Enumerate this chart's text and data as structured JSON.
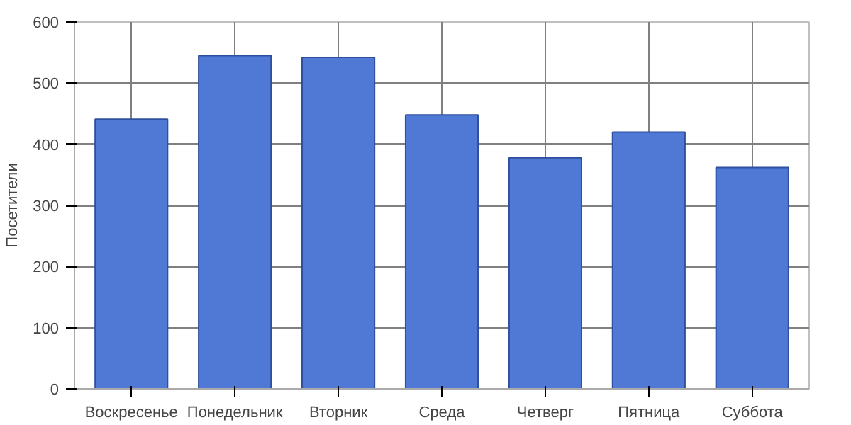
{
  "chart_data": {
    "type": "bar",
    "ylabel": "Посетители",
    "categories": [
      "Воскресенье",
      "Понедельник",
      "Вторник",
      "Среда",
      "Четверг",
      "Пятница",
      "Суббота"
    ],
    "values": [
      441,
      545,
      542,
      448,
      378,
      420,
      362
    ],
    "color": "#4f79d5",
    "ylim": [
      0,
      600
    ],
    "yticks": [
      0,
      100,
      200,
      300,
      400,
      500,
      600
    ],
    "grid": true
  }
}
